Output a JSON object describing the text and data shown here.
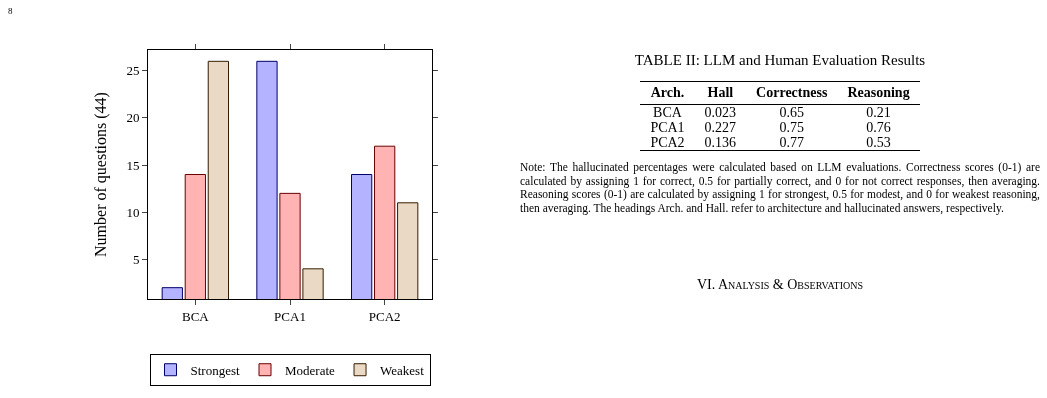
{
  "chart_data": [
    {
      "type": "bar",
      "ylabel": "Number of questions (44)",
      "categories": [
        "BCA",
        "PCA1",
        "PCA2"
      ],
      "series": [
        {
          "name": "Strongest",
          "color": "#b3b3ff",
          "values": [
            2,
            26,
            14
          ]
        },
        {
          "name": "Moderate",
          "color": "#ffb3b3",
          "values": [
            14,
            12,
            17
          ]
        },
        {
          "name": "Weakest",
          "color": "#ead9c4",
          "values": [
            26,
            4,
            11
          ]
        }
      ],
      "ylim": [
        0.8,
        27.2
      ],
      "yticks": [
        5,
        10,
        15,
        20,
        25
      ],
      "grid": false,
      "legend": "bottom",
      "annotations": [
        "8"
      ]
    },
    {
      "type": "other",
      "title": "TABLE II: LLM and Human Evaluation Results",
      "annotations": [
        "Arch.",
        "Hall",
        "Correctness",
        "Reasoning",
        "BCA",
        "0.023",
        "0.65",
        "0.21",
        "PCA1",
        "0.227",
        "0.75",
        "0.76",
        "PCA2",
        "0.136",
        "0.77",
        "0.53",
        "Note: The hallucinated percentages were calculated based on LLM evaluations. Correctness scores (0-1) are calculated by assigning 1 for correct, 0.5 for partially correct, and 0 for not correct responses, then averaging. Reasoning scores (0-1) are calculated by assigning 1 for strongest, 0.5 for modest, and 0 for weakest reasoning, then averaging. The headings Arch. and Hall. refer to architecture and hallucinated answers, respectively.",
        "VI. Analysis & Observations"
      ]
    }
  ]
}
